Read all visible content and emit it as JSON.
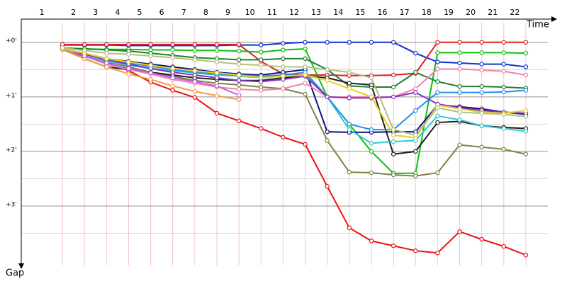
{
  "chart_data": {
    "type": "line",
    "x_label": "Time",
    "y_label": "Gap",
    "categories": [
      "1",
      "2",
      "3",
      "4",
      "5",
      "6",
      "7",
      "8",
      "9",
      "10",
      "11",
      "12",
      "13",
      "14",
      "15",
      "16",
      "17",
      "18",
      "19",
      "20",
      "21",
      "22"
    ],
    "ylim": [
      -0.36,
      4.09
    ],
    "yticks": [
      {
        "value": 0,
        "label": "+0'"
      },
      {
        "value": 1,
        "label": "+1'"
      },
      {
        "value": 2,
        "label": "+2'"
      },
      {
        "value": 3,
        "label": "+3'"
      }
    ],
    "minor_yticks": [
      0.5,
      1.5,
      2.5,
      3.5
    ],
    "grid": true,
    "y_inverted": true,
    "series": [
      {
        "color": "#ee1111",
        "values": [
          0.13,
          0.26,
          0.36,
          0.52,
          0.73,
          0.88,
          1.01,
          1.3,
          1.44,
          1.58,
          1.74,
          1.87,
          2.64,
          3.4,
          3.64,
          3.73,
          3.82,
          3.86,
          3.47,
          3.61,
          3.74,
          3.9
        ]
      },
      {
        "color": "#1030d0",
        "values": [
          0.05,
          0.05,
          0.05,
          0.06,
          0.06,
          0.06,
          0.06,
          0.06,
          0.05,
          0.05,
          0.02,
          0,
          0,
          0,
          0,
          0,
          0.2,
          0.36,
          0.38,
          0.4,
          0.4,
          0.45
        ]
      },
      {
        "color": "#e02020",
        "values": [
          0.04,
          0.04,
          0.04,
          0.04,
          0.04,
          0.04,
          0.04,
          0.04,
          0.04,
          0.35,
          0.58,
          0.6,
          0.6,
          0.61,
          0.61,
          0.6,
          0.57,
          0,
          0,
          0,
          0,
          0
        ]
      },
      {
        "color": "#10c010",
        "values": [
          0.12,
          0.12,
          0.13,
          0.13,
          0.14,
          0.14,
          0.15,
          0.15,
          0.16,
          0.18,
          0.14,
          0.12,
          1.0,
          1.5,
          2.0,
          2.4,
          2.4,
          0.19,
          0.19,
          0.19,
          0.19,
          0.2
        ]
      },
      {
        "color": "#208030",
        "values": [
          0.1,
          0.12,
          0.14,
          0.16,
          0.2,
          0.24,
          0.28,
          0.3,
          0.32,
          0.32,
          0.3,
          0.3,
          0.5,
          0.8,
          0.82,
          0.82,
          0.55,
          0.72,
          0.81,
          0.81,
          0.82,
          0.84
        ]
      },
      {
        "color": "#808040",
        "values": [
          0.12,
          0.25,
          0.35,
          0.45,
          0.55,
          0.62,
          0.7,
          0.75,
          0.78,
          0.82,
          0.85,
          0.95,
          1.8,
          2.38,
          2.39,
          2.43,
          2.45,
          2.39,
          1.88,
          1.92,
          1.96,
          2.05
        ]
      },
      {
        "color": "#202020",
        "values": [
          0.13,
          0.3,
          0.45,
          0.5,
          0.55,
          0.6,
          0.65,
          0.68,
          0.7,
          0.7,
          0.65,
          0.62,
          0.65,
          0.75,
          0.78,
          2.05,
          2.0,
          1.47,
          1.45,
          1.53,
          1.56,
          1.58
        ]
      },
      {
        "color": "#101080",
        "values": [
          0.12,
          0.2,
          0.3,
          0.35,
          0.4,
          0.45,
          0.5,
          0.55,
          0.58,
          0.6,
          0.55,
          0.5,
          1.64,
          1.65,
          1.65,
          1.64,
          1.64,
          1.15,
          1.18,
          1.22,
          1.28,
          1.32
        ]
      },
      {
        "color": "#30c8d0",
        "values": [
          0.12,
          0.25,
          0.35,
          0.42,
          0.48,
          0.52,
          0.56,
          0.6,
          0.62,
          0.65,
          0.62,
          0.6,
          1.0,
          1.6,
          1.85,
          1.82,
          1.8,
          1.35,
          1.42,
          1.53,
          1.58,
          1.63
        ]
      },
      {
        "color": "#2090f0",
        "values": [
          0.12,
          0.22,
          0.3,
          0.38,
          0.44,
          0.5,
          0.55,
          0.58,
          0.6,
          0.62,
          0.6,
          0.55,
          1.0,
          1.5,
          1.6,
          1.6,
          1.25,
          0.92,
          0.92,
          0.92,
          0.91,
          0.88
        ]
      },
      {
        "color": "#f080b0",
        "values": [
          0.12,
          0.25,
          0.4,
          0.5,
          0.58,
          0.68,
          0.75,
          0.82,
          0.86,
          0.88,
          0.85,
          0.75,
          1.0,
          1.0,
          1.0,
          1.0,
          0.85,
          0.49,
          0.49,
          0.51,
          0.53,
          0.6
        ]
      },
      {
        "color": "#8030c0",
        "values": [
          0.12,
          0.22,
          0.32,
          0.4,
          0.48,
          0.55,
          0.6,
          0.65,
          0.7,
          0.72,
          0.68,
          0.62,
          1.0,
          1.02,
          1.02,
          1.0,
          0.92,
          1.13,
          1.2,
          1.25,
          1.28,
          1.3
        ]
      },
      {
        "color": "#f0a040",
        "values": [
          0.13,
          0.3,
          0.45,
          0.58,
          0.68,
          0.8,
          0.9,
          0.98,
          1.05,
          null,
          null,
          null,
          null,
          null,
          null,
          null,
          null,
          null,
          null,
          null,
          null,
          null
        ]
      },
      {
        "color": "#c060e0",
        "values": [
          0.12,
          0.25,
          0.38,
          0.48,
          0.56,
          0.65,
          0.72,
          0.8,
          0.97,
          null,
          null,
          null,
          null,
          null,
          null,
          null,
          null,
          null,
          null,
          null,
          null,
          null
        ]
      },
      {
        "color": "#e8d020",
        "values": [
          0.12,
          0.2,
          0.3,
          0.36,
          0.42,
          0.48,
          0.52,
          0.56,
          0.6,
          0.65,
          0.62,
          0.6,
          0.7,
          0.85,
          1.0,
          1.7,
          1.75,
          1.15,
          1.22,
          1.28,
          1.3,
          1.25
        ]
      },
      {
        "color": "#b0c080",
        "values": [
          0.1,
          0.15,
          0.2,
          0.22,
          0.25,
          0.28,
          0.32,
          0.36,
          0.4,
          0.42,
          0.45,
          0.45,
          0.5,
          0.55,
          0.65,
          1.6,
          1.7,
          1.2,
          1.28,
          1.3,
          1.32,
          1.36
        ]
      }
    ]
  }
}
